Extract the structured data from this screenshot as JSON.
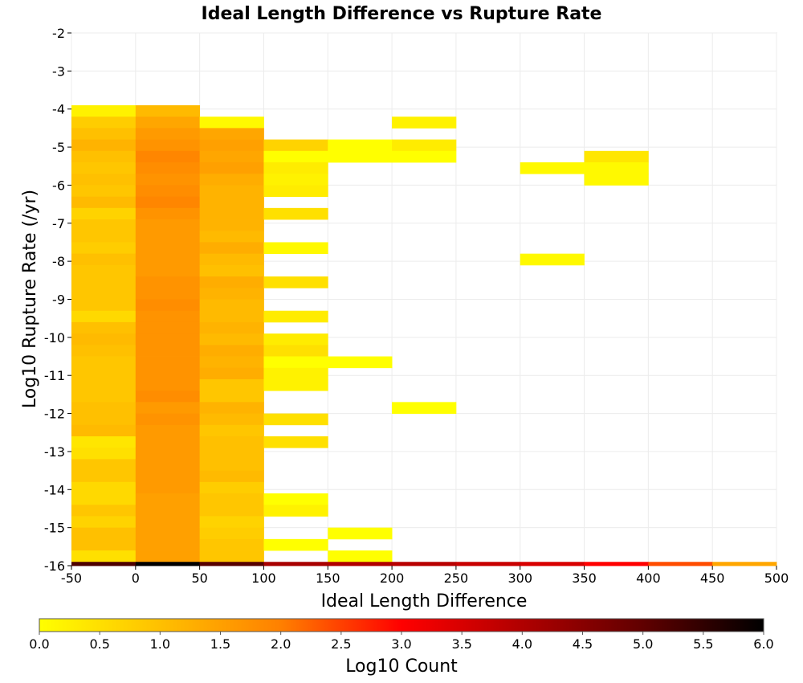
{
  "chart_data": {
    "type": "heatmap",
    "title": "Ideal Length Difference vs Rupture Rate",
    "xlabel": "Ideal Length Difference",
    "ylabel": "Log10 Rupture Rate (/yr)",
    "xlim": [
      -50,
      500
    ],
    "ylim": [
      -16,
      -2
    ],
    "xticks": [
      -50,
      0,
      50,
      100,
      150,
      200,
      250,
      300,
      350,
      400,
      450,
      500
    ],
    "yticks": [
      -2,
      -3,
      -4,
      -5,
      -6,
      -7,
      -8,
      -9,
      -10,
      -11,
      -12,
      -13,
      -14,
      -15,
      -16
    ],
    "x_bin_width": 50,
    "y_bin_height": 0.3,
    "grid": true,
    "colorbar": {
      "label": "Log10 Count",
      "range": [
        0.0,
        6.0
      ],
      "ticks": [
        "0.0",
        "0.5",
        "1.0",
        "1.5",
        "2.0",
        "2.5",
        "3.0",
        "3.5",
        "4.0",
        "4.5",
        "5.0",
        "5.5",
        "6.0"
      ],
      "colors": [
        "#ffff00",
        "#ffc000",
        "#ff8000",
        "#ff0000",
        "#b00000",
        "#600000",
        "#000000"
      ]
    },
    "columns": [
      {
        "x_start": -50,
        "cells": [
          [
            -4.2,
            0.2
          ],
          [
            -4.5,
            0.8
          ],
          [
            -4.8,
            1.0
          ],
          [
            -5.1,
            1.2
          ],
          [
            -5.4,
            1.0
          ],
          [
            -5.7,
            0.9
          ],
          [
            -6.0,
            1.0
          ],
          [
            -6.3,
            0.9
          ],
          [
            -6.6,
            1.1
          ],
          [
            -6.9,
            0.7
          ],
          [
            -7.2,
            0.9
          ],
          [
            -7.5,
            0.9
          ],
          [
            -7.8,
            0.8
          ],
          [
            -8.1,
            1.0
          ],
          [
            -8.4,
            0.9
          ],
          [
            -8.7,
            0.9
          ],
          [
            -9.0,
            0.9
          ],
          [
            -9.3,
            0.9
          ],
          [
            -9.6,
            0.6
          ],
          [
            -9.9,
            1.0
          ],
          [
            -10.2,
            1.1
          ],
          [
            -10.5,
            1.0
          ],
          [
            -10.8,
            0.9
          ],
          [
            -11.1,
            0.9
          ],
          [
            -11.4,
            0.9
          ],
          [
            -11.7,
            0.9
          ],
          [
            -12.0,
            1.0
          ],
          [
            -12.3,
            1.0
          ],
          [
            -12.6,
            1.1
          ],
          [
            -12.9,
            0.4
          ],
          [
            -13.2,
            0.5
          ],
          [
            -13.5,
            0.9
          ],
          [
            -13.8,
            0.9
          ],
          [
            -14.1,
            0.6
          ],
          [
            -14.4,
            0.6
          ],
          [
            -14.7,
            0.9
          ],
          [
            -15.0,
            0.7
          ],
          [
            -15.3,
            1.0
          ],
          [
            -15.6,
            1.0
          ],
          [
            -15.9,
            0.5
          ],
          [
            -16.2,
            5.2
          ]
        ]
      },
      {
        "x_start": 0,
        "cells": [
          [
            -4.2,
            1.1
          ],
          [
            -4.5,
            1.4
          ],
          [
            -4.8,
            1.6
          ],
          [
            -5.1,
            1.7
          ],
          [
            -5.4,
            1.9
          ],
          [
            -5.7,
            1.8
          ],
          [
            -6.0,
            1.7
          ],
          [
            -6.3,
            1.8
          ],
          [
            -6.6,
            1.9
          ],
          [
            -6.9,
            1.7
          ],
          [
            -7.2,
            1.6
          ],
          [
            -7.5,
            1.6
          ],
          [
            -7.8,
            1.6
          ],
          [
            -8.1,
            1.6
          ],
          [
            -8.4,
            1.6
          ],
          [
            -8.7,
            1.7
          ],
          [
            -9.0,
            1.7
          ],
          [
            -9.3,
            1.8
          ],
          [
            -9.6,
            1.7
          ],
          [
            -9.9,
            1.7
          ],
          [
            -10.2,
            1.7
          ],
          [
            -10.5,
            1.7
          ],
          [
            -10.8,
            1.7
          ],
          [
            -11.1,
            1.7
          ],
          [
            -11.4,
            1.7
          ],
          [
            -11.7,
            1.8
          ],
          [
            -12.0,
            1.6
          ],
          [
            -12.3,
            1.7
          ],
          [
            -12.6,
            1.6
          ],
          [
            -12.9,
            1.6
          ],
          [
            -13.2,
            1.6
          ],
          [
            -13.5,
            1.6
          ],
          [
            -13.8,
            1.6
          ],
          [
            -14.1,
            1.6
          ],
          [
            -14.4,
            1.5
          ],
          [
            -14.7,
            1.5
          ],
          [
            -15.0,
            1.5
          ],
          [
            -15.3,
            1.5
          ],
          [
            -15.6,
            1.5
          ],
          [
            -15.9,
            1.5
          ],
          [
            -16.2,
            6.0
          ]
        ]
      },
      {
        "x_start": 50,
        "cells": [
          [
            -4.5,
            0.1
          ],
          [
            -4.8,
            1.4
          ],
          [
            -5.1,
            1.5
          ],
          [
            -5.4,
            1.4
          ],
          [
            -5.7,
            1.5
          ],
          [
            -6.0,
            1.3
          ],
          [
            -6.3,
            1.2
          ],
          [
            -6.6,
            1.2
          ],
          [
            -6.9,
            1.2
          ],
          [
            -7.2,
            1.2
          ],
          [
            -7.5,
            1.1
          ],
          [
            -7.8,
            1.3
          ],
          [
            -8.1,
            1.1
          ],
          [
            -8.4,
            1.0
          ],
          [
            -8.7,
            1.3
          ],
          [
            -9.0,
            1.2
          ],
          [
            -9.3,
            1.1
          ],
          [
            -9.6,
            1.1
          ],
          [
            -9.9,
            1.2
          ],
          [
            -10.2,
            1.1
          ],
          [
            -10.5,
            1.3
          ],
          [
            -10.8,
            1.2
          ],
          [
            -11.1,
            1.3
          ],
          [
            -11.4,
            0.9
          ],
          [
            -11.7,
            0.9
          ],
          [
            -12.0,
            1.2
          ],
          [
            -12.3,
            1.1
          ],
          [
            -12.6,
            0.9
          ],
          [
            -12.9,
            1.0
          ],
          [
            -13.2,
            1.0
          ],
          [
            -13.5,
            1.0
          ],
          [
            -13.8,
            1.1
          ],
          [
            -14.1,
            0.8
          ],
          [
            -14.4,
            0.9
          ],
          [
            -14.7,
            0.9
          ],
          [
            -15.0,
            0.7
          ],
          [
            -15.3,
            0.8
          ],
          [
            -15.6,
            0.9
          ],
          [
            -15.9,
            0.9
          ],
          [
            -16.2,
            5.1
          ]
        ]
      },
      {
        "x_start": 100,
        "cells": [
          [
            -5.1,
            0.7
          ],
          [
            -5.4,
            0.0
          ],
          [
            -5.7,
            0.3
          ],
          [
            -6.0,
            0.2
          ],
          [
            -6.3,
            0.3
          ],
          [
            -6.9,
            0.5
          ],
          [
            -7.8,
            0.1
          ],
          [
            -8.7,
            0.5
          ],
          [
            -9.6,
            0.3
          ],
          [
            -10.2,
            0.3
          ],
          [
            -10.5,
            0.5
          ],
          [
            -10.8,
            0.0
          ],
          [
            -11.1,
            0.2
          ],
          [
            -11.4,
            0.2
          ],
          [
            -12.3,
            0.5
          ],
          [
            -12.9,
            0.5
          ],
          [
            -14.4,
            0.0
          ],
          [
            -14.7,
            0.2
          ],
          [
            -15.6,
            0.0
          ],
          [
            -16.2,
            4.1
          ]
        ]
      },
      {
        "x_start": 150,
        "cells": [
          [
            -5.1,
            0.0
          ],
          [
            -5.4,
            0.0
          ],
          [
            -10.8,
            0.0
          ],
          [
            -15.3,
            0.0
          ],
          [
            -15.9,
            0.0
          ],
          [
            -16.2,
            4.0
          ]
        ]
      },
      {
        "x_start": 200,
        "cells": [
          [
            -4.5,
            0.2
          ],
          [
            -5.1,
            0.3
          ],
          [
            -5.4,
            0.0
          ],
          [
            -12.0,
            0.0
          ],
          [
            -16.2,
            3.9
          ]
        ]
      },
      {
        "x_start": 250,
        "cells": [
          [
            -16.2,
            3.7
          ]
        ]
      },
      {
        "x_start": 300,
        "cells": [
          [
            -5.7,
            0.1
          ],
          [
            -8.1,
            0.1
          ],
          [
            -16.2,
            3.5
          ]
        ]
      },
      {
        "x_start": 350,
        "cells": [
          [
            -5.4,
            0.4
          ],
          [
            -5.7,
            0.1
          ],
          [
            -6.0,
            0.1
          ],
          [
            -16.2,
            3.0
          ]
        ]
      },
      {
        "x_start": 400,
        "cells": [
          [
            -16.2,
            2.4
          ]
        ]
      },
      {
        "x_start": 450,
        "cells": [
          [
            -16.2,
            1.4
          ]
        ]
      }
    ]
  }
}
